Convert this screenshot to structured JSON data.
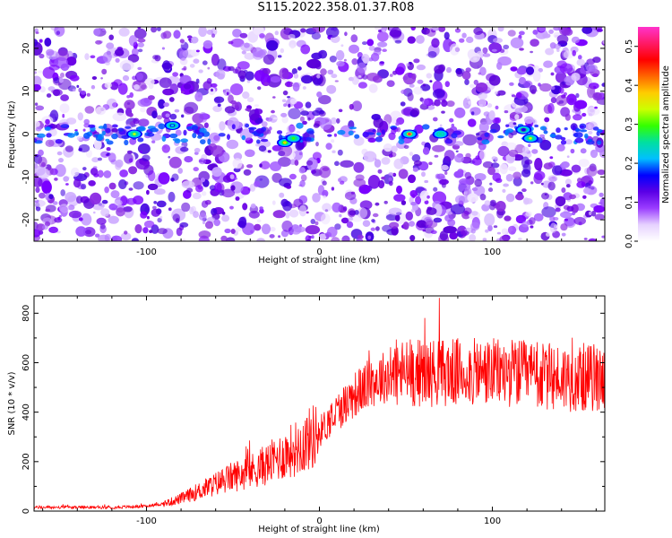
{
  "title": "S115.2022.358.01.37.R08",
  "chart_data": [
    {
      "type": "heatmap",
      "xlabel": "Height of straight line (km)",
      "ylabel": "Frequency (Hz)",
      "xlim": [
        -165,
        165
      ],
      "ylim": [
        -25,
        25
      ],
      "xticks": [
        -100,
        0,
        100
      ],
      "yticks": [
        -20,
        -10,
        0,
        10,
        20
      ],
      "colorbar": {
        "label": "Normalized spectral amplitude",
        "range": [
          0.0,
          0.55
        ],
        "ticks": [
          "0.0",
          "0.1",
          "0.2",
          "0.3",
          "0.4",
          "0.5"
        ],
        "colors": [
          "#ffffff",
          "#e6d2ff",
          "#9b3dff",
          "#5a00e6",
          "#0000ff",
          "#00bfff",
          "#00e0a0",
          "#33ff00",
          "#ccff00",
          "#ffcc00",
          "#ff6600",
          "#ff0000",
          "#ff1a66",
          "#ff33cc"
        ]
      },
      "hotspots": [
        {
          "x": -107,
          "f": 0,
          "amp": 0.34
        },
        {
          "x": -85,
          "f": 2,
          "amp": 0.22
        },
        {
          "x": -20,
          "f": -2,
          "amp": 0.36
        },
        {
          "x": -15,
          "f": -1,
          "amp": 0.3
        },
        {
          "x": 52,
          "f": 0,
          "amp": 0.5
        },
        {
          "x": 70,
          "f": 0,
          "amp": 0.26
        },
        {
          "x": 122,
          "f": -1,
          "amp": 0.32
        },
        {
          "x": 118,
          "f": 1,
          "amp": 0.18
        }
      ]
    },
    {
      "type": "line",
      "xlabel": "Height of straight line (km)",
      "ylabel": "SNR (10 * v/v)",
      "xlim": [
        -165,
        165
      ],
      "ylim": [
        0,
        870
      ],
      "xticks": [
        -100,
        0,
        100
      ],
      "yticks": [
        0,
        200,
        400,
        600,
        800
      ],
      "color": "#ff0000",
      "envelope": {
        "x": [
          -165,
          -120,
          -100,
          -90,
          -80,
          -70,
          -60,
          -50,
          -40,
          -30,
          -20,
          -10,
          0,
          10,
          20,
          30,
          40,
          50,
          60,
          70,
          80,
          90,
          100,
          110,
          120,
          130,
          140,
          150,
          160,
          165
        ],
        "y": [
          15,
          15,
          20,
          30,
          50,
          80,
          110,
          140,
          160,
          190,
          230,
          270,
          320,
          400,
          470,
          520,
          550,
          560,
          560,
          560,
          560,
          560,
          560,
          560,
          550,
          540,
          540,
          540,
          540,
          540
        ]
      }
    }
  ]
}
